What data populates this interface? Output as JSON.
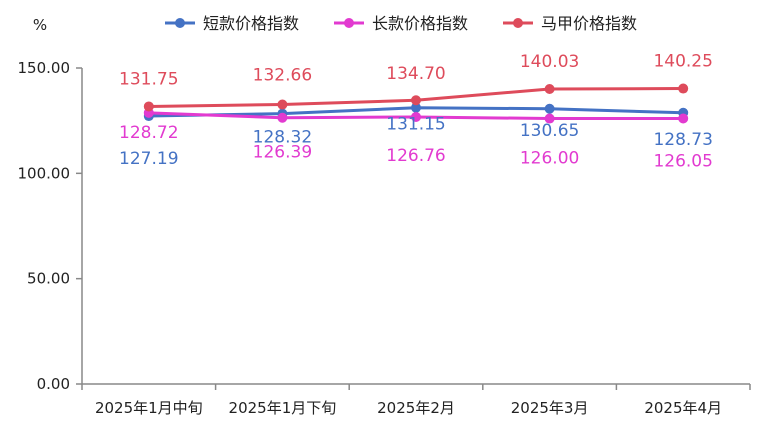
{
  "chart_data": {
    "type": "line",
    "unit": "%",
    "categories": [
      "2025年1月中旬",
      "2025年1月下旬",
      "2025年2月",
      "2025年3月",
      "2025年4月"
    ],
    "ylim": [
      0,
      150
    ],
    "yticks": [
      "0.00",
      "50.00",
      "100.00",
      "150.00"
    ],
    "grid": false,
    "legend_position": "top",
    "series": [
      {
        "name": "短款价格指数",
        "color": "#4472C4",
        "values": [
          127.19,
          128.32,
          131.15,
          130.65,
          128.73
        ],
        "labels": [
          "127.19",
          "128.32",
          "131.15",
          "130.65",
          "128.73"
        ]
      },
      {
        "name": "长款价格指数",
        "color": "#E23AD0",
        "values": [
          128.72,
          126.39,
          126.76,
          126.0,
          126.05
        ],
        "labels": [
          "128.72",
          "126.39",
          "126.76",
          "126.00",
          "126.05"
        ]
      },
      {
        "name": "马甲价格指数",
        "color": "#DE4B5B",
        "values": [
          131.75,
          132.66,
          134.7,
          140.03,
          140.25
        ],
        "labels": [
          "131.75",
          "132.66",
          "134.70",
          "140.03",
          "140.25"
        ]
      }
    ]
  }
}
